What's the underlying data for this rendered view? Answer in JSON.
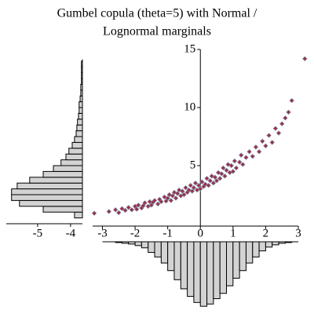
{
  "chart_data": [
    {
      "type": "scatter",
      "title": [
        "Gumbel copula (theta=5) with Normal /",
        "Lognormal marginals"
      ],
      "color": "#a52a2a",
      "edgecolor": "#7a7aa8",
      "x": [
        -3.25,
        -2.8,
        -2.6,
        -2.5,
        -2.4,
        -2.3,
        -2.2,
        -2.1,
        -2.0,
        -1.95,
        -1.9,
        -1.8,
        -1.75,
        -1.7,
        -1.6,
        -1.55,
        -1.5,
        -1.45,
        -1.4,
        -1.3,
        -1.25,
        -1.2,
        -1.1,
        -1.05,
        -1.0,
        -0.95,
        -0.9,
        -0.85,
        -0.8,
        -0.75,
        -0.7,
        -0.65,
        -0.6,
        -0.55,
        -0.5,
        -0.45,
        -0.4,
        -0.35,
        -0.3,
        -0.25,
        -0.2,
        -0.15,
        -0.1,
        -0.05,
        0.0,
        0.05,
        0.1,
        0.15,
        0.2,
        0.25,
        0.3,
        0.35,
        0.4,
        0.45,
        0.5,
        0.55,
        0.6,
        0.65,
        0.7,
        0.75,
        0.8,
        0.85,
        0.9,
        0.95,
        1.0,
        1.05,
        1.1,
        1.2,
        1.25,
        1.3,
        1.4,
        1.5,
        1.6,
        1.7,
        1.8,
        1.9,
        2.0,
        2.1,
        2.2,
        2.3,
        2.4,
        2.5,
        2.6,
        2.7,
        2.8,
        3.2
      ],
      "values": [
        0.9,
        1.05,
        1.2,
        0.95,
        1.3,
        1.15,
        1.4,
        1.2,
        1.5,
        1.25,
        1.6,
        1.35,
        1.55,
        1.8,
        1.5,
        1.9,
        1.6,
        1.85,
        2.0,
        1.7,
        2.1,
        1.9,
        2.3,
        1.95,
        2.2,
        2.5,
        2.0,
        2.4,
        2.7,
        2.2,
        2.6,
        2.9,
        2.4,
        2.8,
        2.5,
        3.1,
        2.7,
        2.9,
        3.3,
        2.8,
        3.1,
        3.5,
        2.9,
        3.3,
        3.0,
        3.6,
        3.2,
        3.4,
        3.9,
        3.3,
        3.7,
        4.1,
        3.5,
        4.0,
        3.7,
        4.4,
        3.9,
        4.3,
        4.8,
        4.1,
        4.6,
        5.1,
        4.4,
        5.0,
        4.5,
        5.4,
        4.8,
        5.3,
        5.9,
        5.1,
        5.7,
        6.2,
        5.8,
        6.6,
        6.2,
        7.1,
        6.7,
        7.6,
        7.0,
        8.2,
        7.8,
        8.6,
        9.1,
        9.6,
        10.6,
        14.2
      ],
      "xlim": [
        -3.3,
        3
      ],
      "xticks": [
        -3,
        -2,
        -1,
        0,
        1,
        2,
        3
      ],
      "ylim": [
        0,
        15
      ],
      "yticks": [
        5,
        10,
        15
      ]
    },
    {
      "type": "histogram",
      "color": "#d3d3d3",
      "bins": [
        -3.0,
        -2.8,
        -2.6,
        -2.4,
        -2.2,
        -2.0,
        -1.8,
        -1.6,
        -1.4,
        -1.2,
        -1.0,
        -0.8,
        -0.6,
        -0.4,
        -0.2,
        0.0,
        0.2,
        0.4,
        0.6,
        0.8,
        1.0,
        1.2,
        1.4,
        1.6,
        1.8,
        2.0,
        2.2,
        2.4,
        2.6,
        2.8,
        3.0
      ],
      "values": [
        0,
        0,
        1,
        2,
        3,
        5,
        8,
        14,
        20,
        28,
        38,
        50,
        62,
        72,
        80,
        85,
        82,
        75,
        68,
        58,
        48,
        38,
        28,
        20,
        12,
        7,
        4,
        2,
        1,
        0
      ],
      "ylim": [
        0,
        90
      ]
    },
    {
      "type": "histogram-horizontal",
      "color": "#d3d3d3",
      "bins": [
        0.5,
        1,
        1.5,
        2,
        2.5,
        3,
        3.5,
        4,
        4.5,
        5,
        5.5,
        6,
        6.5,
        7,
        7.5,
        8,
        8.5,
        9,
        9.5,
        10,
        10.5,
        11,
        11.5,
        12,
        12.5,
        13,
        13.5,
        14
      ],
      "values": [
        -3.88,
        -4.83,
        -5.55,
        -5.79,
        -5.79,
        -5.62,
        -5.24,
        -4.83,
        -4.52,
        -4.29,
        -4.14,
        -4.05,
        -3.95,
        -3.88,
        -3.83,
        -3.81,
        -3.79,
        -3.76,
        -3.74,
        -3.74,
        -3.71,
        -3.69,
        -3.69,
        -3.67,
        -3.67,
        -3.67,
        -3.67
      ],
      "xlim": [
        -5.95,
        -3.64
      ],
      "xticks": [
        -5,
        -4
      ]
    }
  ]
}
